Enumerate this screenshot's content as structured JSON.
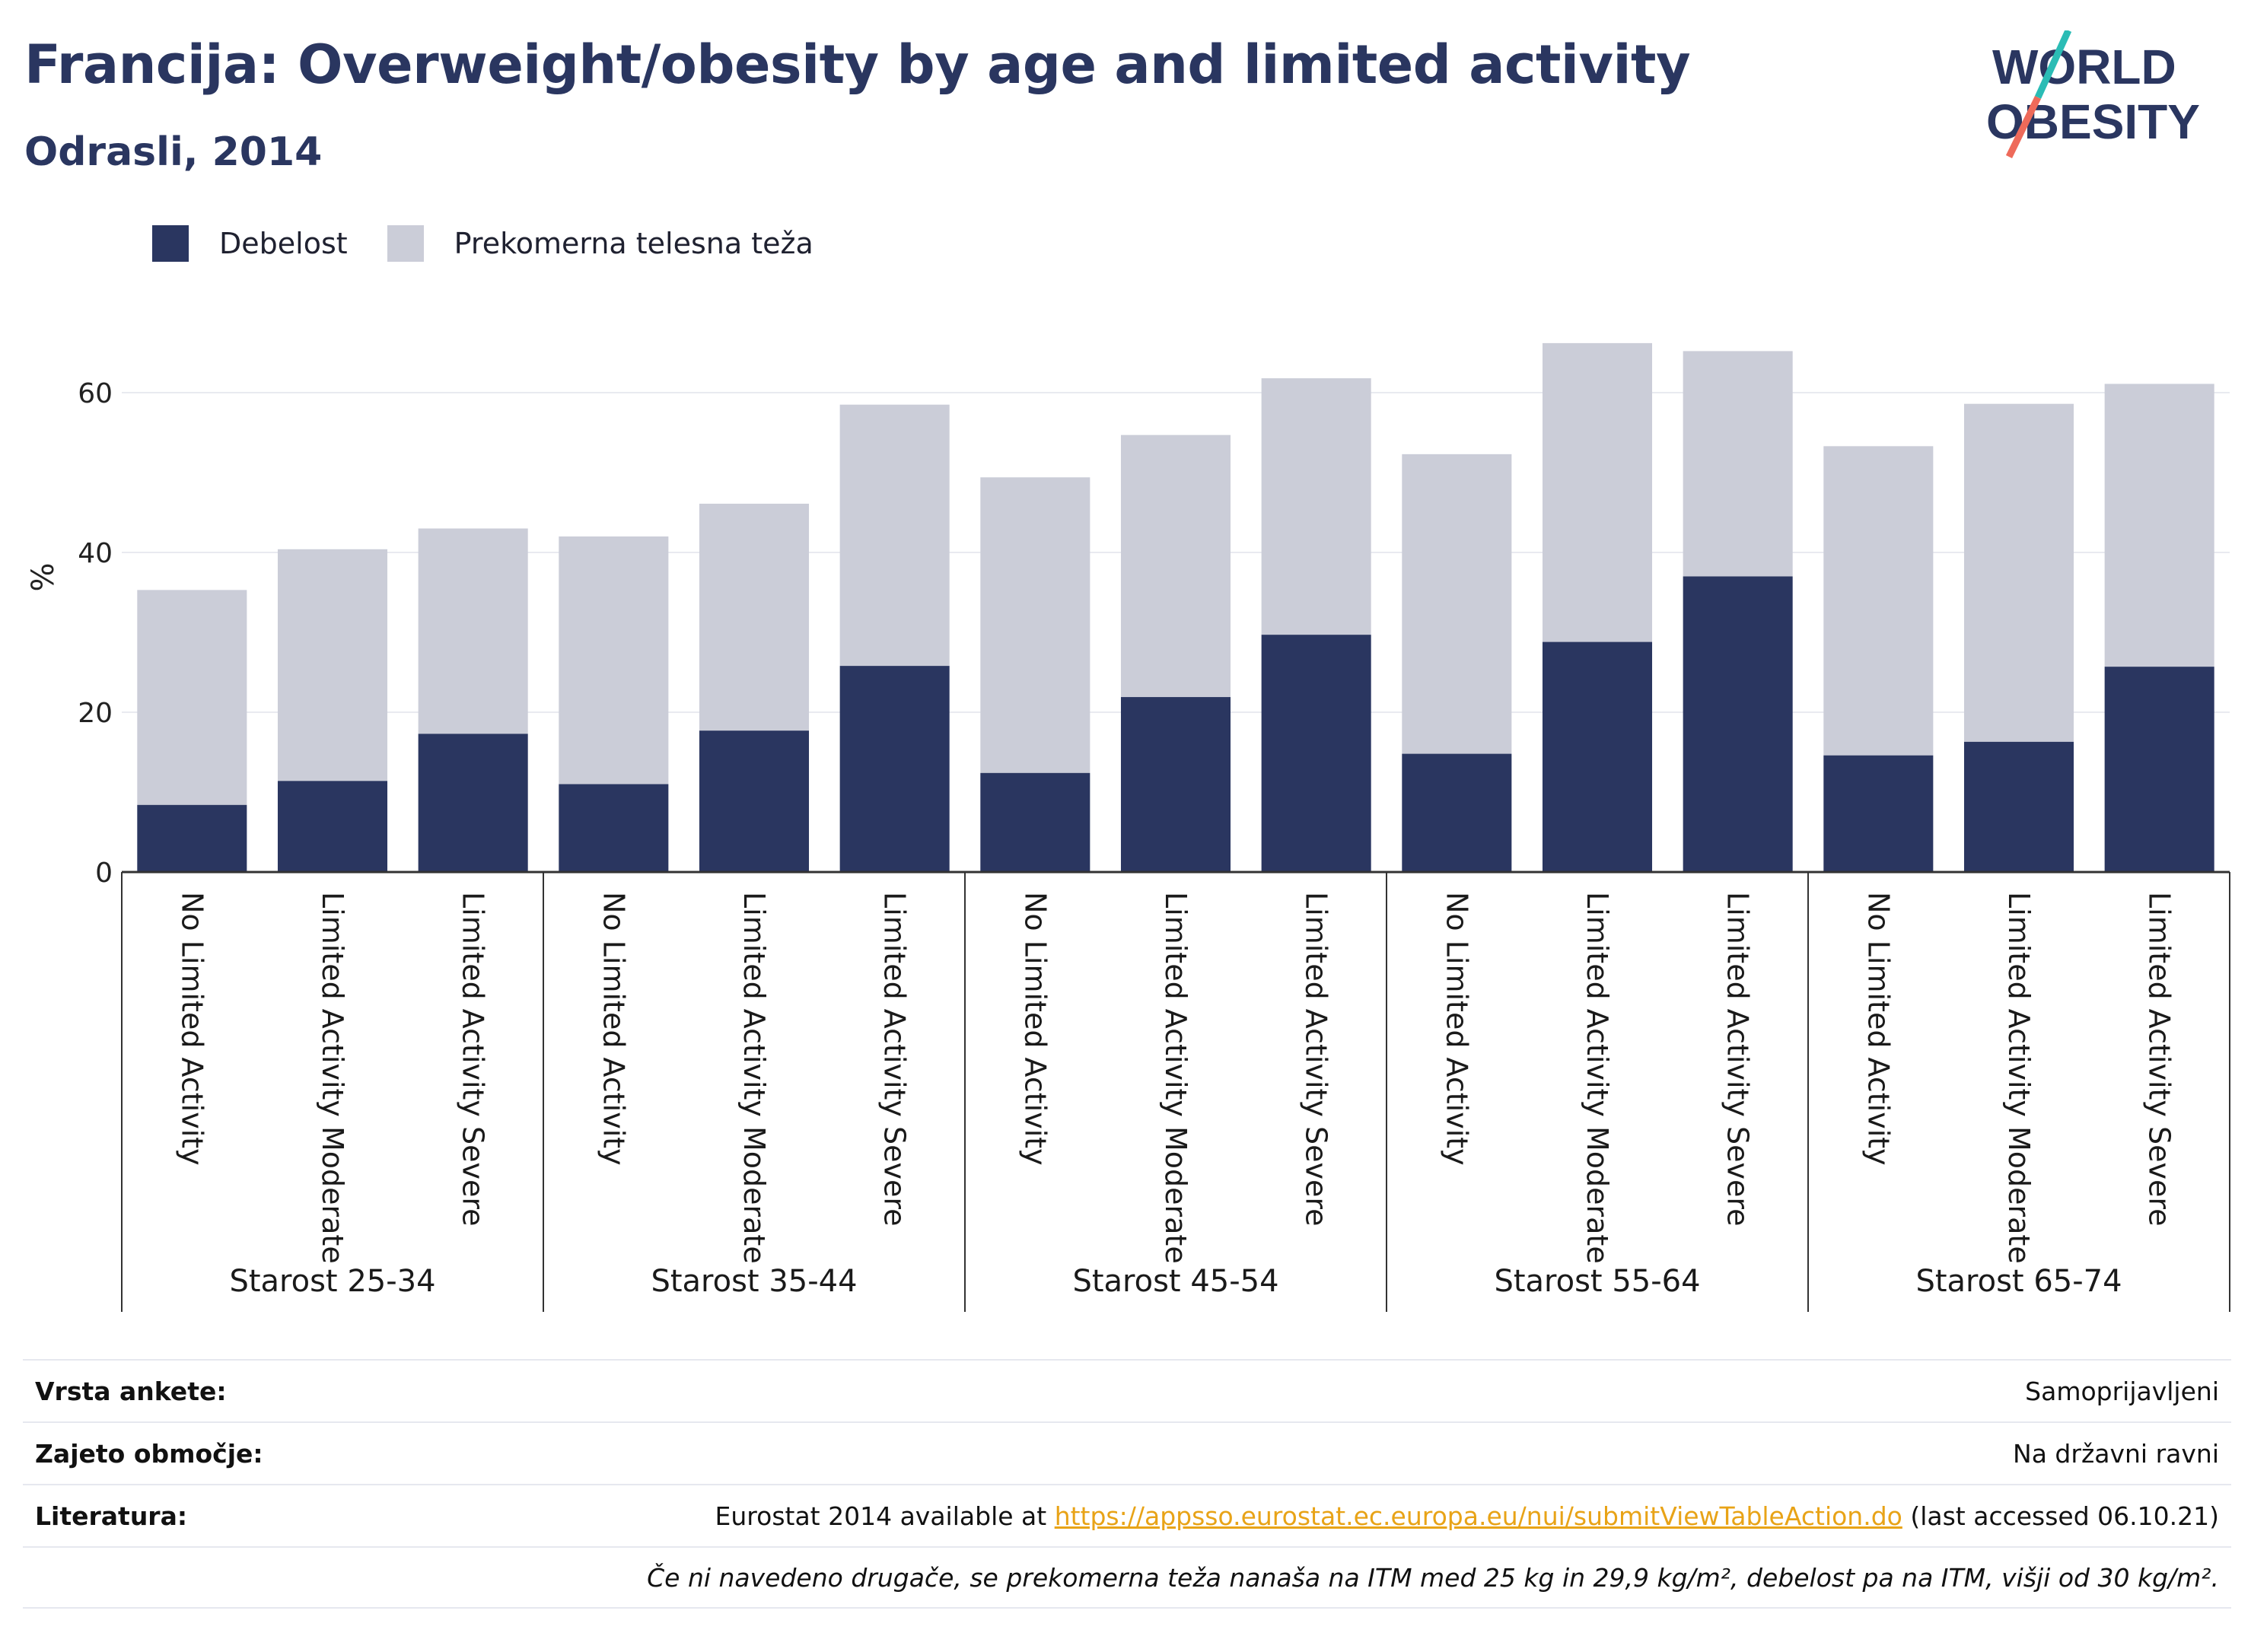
{
  "title": "Francija: Overweight/obesity by age and limited activity",
  "subtitle": "Odrasli, 2014",
  "logo": {
    "line1": "WORLD",
    "line2": "OBESITY",
    "color": "#2a3660",
    "accent1": "#2bbcb5",
    "accent2": "#ee6a5a"
  },
  "colors": {
    "obesity": "#2a3660",
    "overweight": "#cbcdd8",
    "grid": "#e9eaf0",
    "axis": "#333333"
  },
  "legend": [
    {
      "label": "Debelost",
      "color": "#2a3660"
    },
    {
      "label": "Prekomerna telesna teža",
      "color": "#cbcdd8"
    }
  ],
  "chart_data": {
    "type": "bar",
    "stacked": true,
    "ylabel": "%",
    "ylim": [
      0,
      70
    ],
    "yticks": [
      0,
      20,
      40,
      60
    ],
    "groups": [
      "Starost 25-34",
      "Starost 35-44",
      "Starost 45-54",
      "Starost 55-64",
      "Starost 65-74"
    ],
    "categories": [
      "No Limited Activity",
      "Limited Activity Moderate",
      "Limited Activity Severe"
    ],
    "series": [
      {
        "name": "Debelost",
        "values": [
          [
            8.4,
            11.4,
            17.3
          ],
          [
            11.0,
            17.7,
            25.8
          ],
          [
            12.4,
            21.9,
            29.7
          ],
          [
            14.8,
            28.8,
            37.0
          ],
          [
            14.6,
            16.3,
            25.7
          ]
        ]
      },
      {
        "name": "Prekomerna telesna teža",
        "values": [
          [
            26.9,
            29.0,
            25.7
          ],
          [
            31.0,
            28.4,
            32.7
          ],
          [
            37.0,
            32.8,
            32.1
          ],
          [
            37.5,
            37.4,
            28.2
          ],
          [
            38.7,
            42.3,
            35.4
          ]
        ]
      }
    ]
  },
  "info": {
    "survey_label": "Vrsta ankete:",
    "survey_value": "Samoprijavljeni",
    "coverage_label": "Zajeto območje:",
    "coverage_value": "Na državni ravni",
    "reference_label": "Literatura:",
    "reference_prefix": "Eurostat 2014 available at",
    "reference_link": "https://appsso.eurostat.ec.europa.eu/nui/submitViewTableAction.do",
    "reference_suffix": "(last accessed 06.10.21)",
    "note": "Če ni navedeno drugače, se prekomerna teža nanaša na ITM med 25 kg in 29,9 kg/m², debelost pa na ITM, višji od 30 kg/m²."
  }
}
